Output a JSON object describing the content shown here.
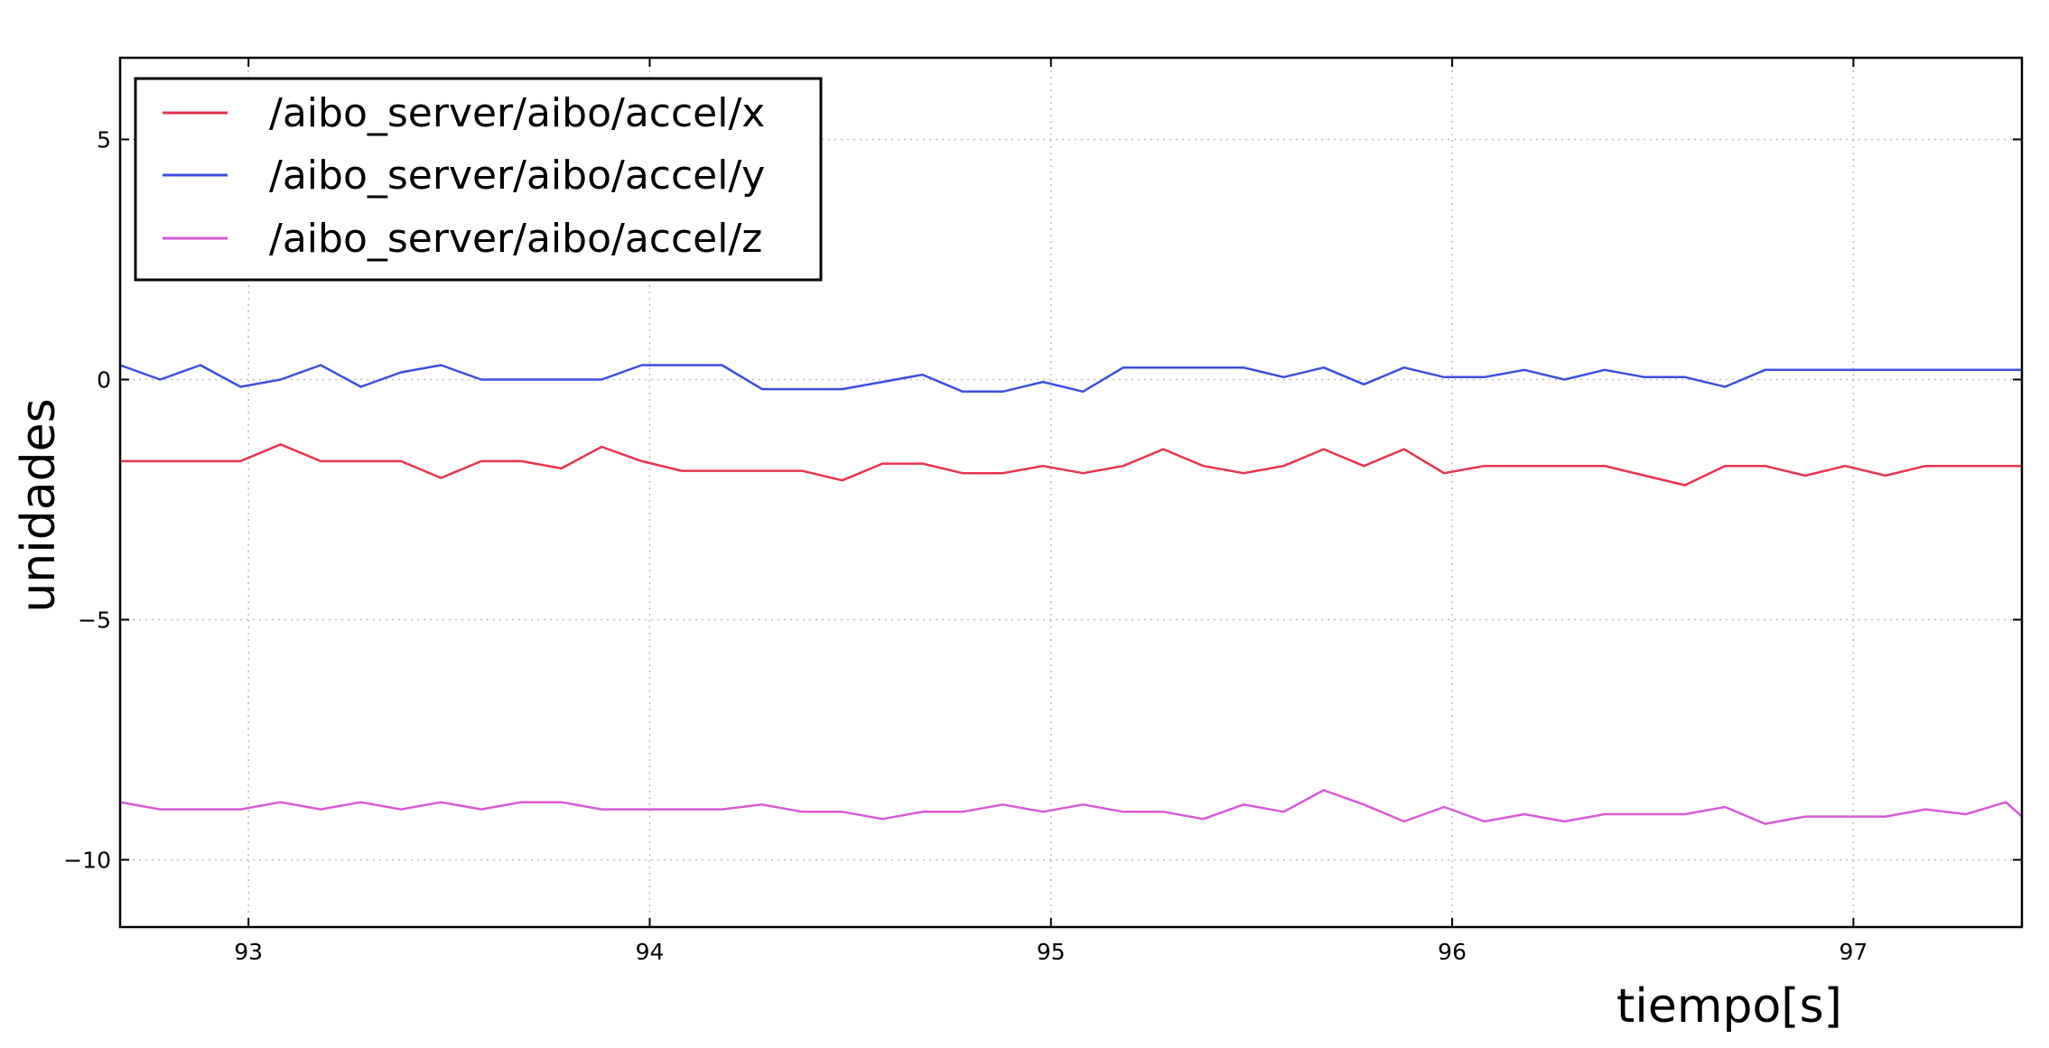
{
  "chart_data": {
    "type": "line",
    "xlabel": "tiempo[s]",
    "ylabel": "unidades",
    "xlim": [
      92.68,
      97.42
    ],
    "ylim": [
      -11.4,
      6.7
    ],
    "xticks": [
      93,
      94,
      95,
      96,
      97
    ],
    "xtick_labels": [
      "93",
      "94",
      "95",
      "96",
      "97"
    ],
    "yticks": [
      5,
      0,
      -5,
      -10
    ],
    "ytick_labels": [
      "5",
      "0",
      "−5",
      "−10"
    ],
    "grid": true,
    "legend_position": "top-left",
    "x": [
      92.68,
      92.78,
      92.88,
      92.98,
      93.08,
      93.18,
      93.28,
      93.38,
      93.48,
      93.58,
      93.68,
      93.78,
      93.88,
      93.98,
      94.08,
      94.18,
      94.28,
      94.38,
      94.48,
      94.58,
      94.68,
      94.78,
      94.88,
      94.98,
      95.08,
      95.18,
      95.28,
      95.38,
      95.48,
      95.58,
      95.68,
      95.78,
      95.88,
      95.98,
      96.08,
      96.18,
      96.28,
      96.38,
      96.48,
      96.58,
      96.68,
      96.78,
      96.88,
      96.98,
      97.08,
      97.18,
      97.28,
      97.38,
      97.42
    ],
    "series": [
      {
        "name": "/aibo_server/aibo/accel/x",
        "color": "#e8334f",
        "values": [
          -1.7,
          -1.7,
          -1.7,
          -1.7,
          -1.35,
          -1.7,
          -1.7,
          -1.7,
          -2.05,
          -1.7,
          -1.7,
          -1.85,
          -1.4,
          -1.7,
          -1.9,
          -1.9,
          -1.9,
          -1.9,
          -2.1,
          -1.75,
          -1.75,
          -1.95,
          -1.95,
          -1.8,
          -1.95,
          -1.8,
          -1.45,
          -1.8,
          -1.95,
          -1.8,
          -1.45,
          -1.8,
          -1.45,
          -1.95,
          -1.8,
          -1.8,
          -1.8,
          -1.8,
          -2.0,
          -2.2,
          -1.8,
          -1.8,
          -2.0,
          -1.8,
          -2.0,
          -1.8,
          -1.8,
          -1.8,
          -1.8
        ]
      },
      {
        "name": "/aibo_server/aibo/accel/y",
        "color": "#3b4fe0",
        "values": [
          0.3,
          0.0,
          0.3,
          -0.15,
          0.0,
          0.3,
          -0.15,
          0.15,
          0.3,
          0.0,
          0.0,
          0.0,
          0.0,
          0.3,
          0.3,
          0.3,
          -0.2,
          -0.2,
          -0.2,
          -0.05,
          0.1,
          -0.25,
          -0.25,
          -0.05,
          -0.25,
          0.25,
          0.25,
          0.25,
          0.25,
          0.05,
          0.25,
          -0.1,
          0.25,
          0.05,
          0.05,
          0.2,
          0.0,
          0.2,
          0.05,
          0.05,
          -0.15,
          0.2,
          0.2,
          0.2,
          0.2,
          0.2,
          0.2,
          0.2,
          0.2
        ]
      },
      {
        "name": "/aibo_server/aibo/accel/z",
        "color": "#d75ad7",
        "values": [
          -8.8,
          -8.95,
          -8.95,
          -8.95,
          -8.8,
          -8.95,
          -8.8,
          -8.95,
          -8.8,
          -8.95,
          -8.8,
          -8.8,
          -8.95,
          -8.95,
          -8.95,
          -8.95,
          -8.85,
          -9.0,
          -9.0,
          -9.15,
          -9.0,
          -9.0,
          -8.85,
          -9.0,
          -8.85,
          -9.0,
          -9.0,
          -9.15,
          -8.85,
          -9.0,
          -8.55,
          -8.85,
          -9.2,
          -8.9,
          -9.2,
          -9.05,
          -9.2,
          -9.05,
          -9.05,
          -9.05,
          -8.9,
          -9.25,
          -9.1,
          -9.1,
          -9.1,
          -8.95,
          -9.05,
          -8.8,
          -9.1
        ]
      }
    ]
  }
}
